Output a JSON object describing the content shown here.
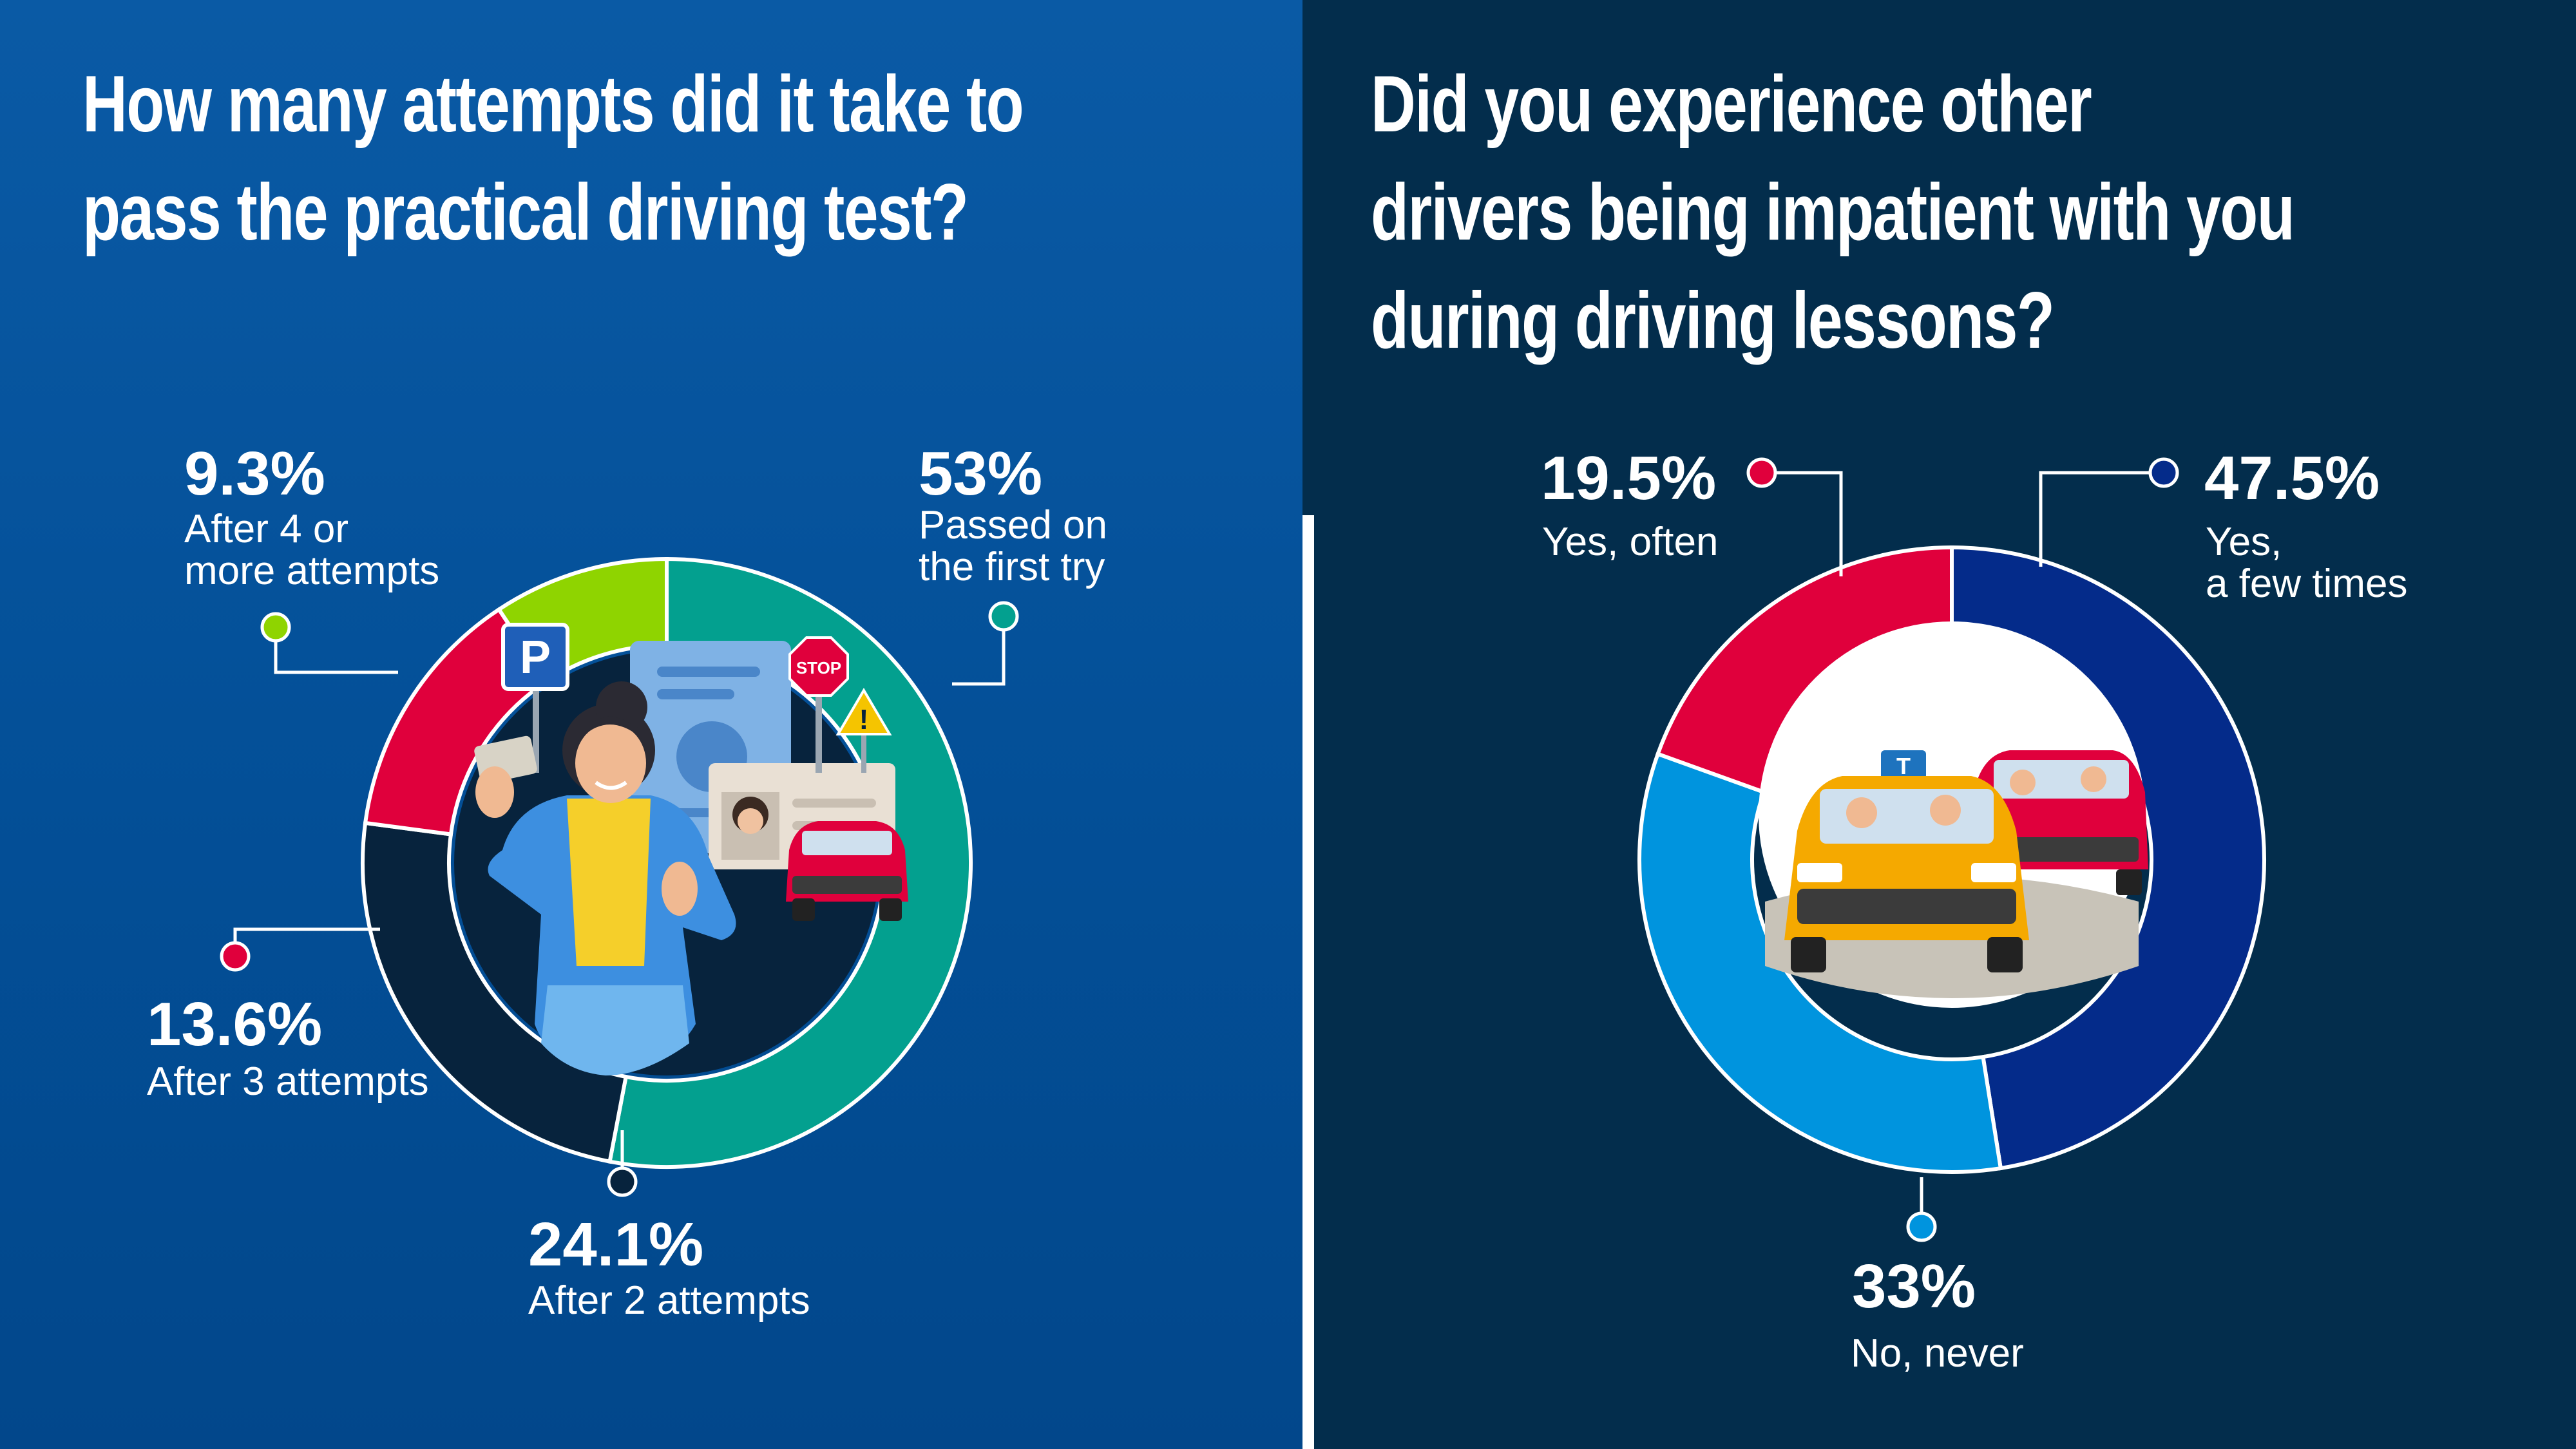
{
  "chart_data": [
    {
      "type": "pie",
      "title": "How many attempts did it take to pass the practical driving test?",
      "title_lines": [
        "How many attempts did it take to",
        "pass the practical driving test?"
      ],
      "donut": true,
      "slices": [
        {
          "value": 53,
          "pct_label": "53%",
          "label_lines": [
            "Passed on",
            "the first try"
          ],
          "color": "#03a08f"
        },
        {
          "value": 24.1,
          "pct_label": "24.1%",
          "label_lines": [
            "After 2 attempts"
          ],
          "color": "#07233d"
        },
        {
          "value": 13.6,
          "pct_label": "13.6%",
          "label_lines": [
            "After 3 attempts"
          ],
          "color": "#e0003c"
        },
        {
          "value": 9.3,
          "pct_label": "9.3%",
          "label_lines": [
            "After 4 or",
            "more attempts"
          ],
          "color": "#8fd400"
        }
      ]
    },
    {
      "type": "pie",
      "title": "Did you experience other drivers being impatient with you during driving lessons?",
      "title_lines": [
        "Did you experience other",
        "drivers being impatient with you",
        "during driving lessons?"
      ],
      "donut": true,
      "slices": [
        {
          "value": 47.5,
          "pct_label": "47.5%",
          "label_lines": [
            "Yes,",
            "a few times"
          ],
          "color": "#042b8a"
        },
        {
          "value": 33,
          "pct_label": "33%",
          "label_lines": [
            "No, never"
          ],
          "color": "#0094de"
        },
        {
          "value": 19.5,
          "pct_label": "19.5%",
          "label_lines": [
            "Yes, often"
          ],
          "color": "#e0003c"
        }
      ]
    }
  ],
  "illustration": {
    "parking_sign": "P",
    "stop_sign": "STOP",
    "taxi_sign": "T",
    "warning_sign": "!"
  }
}
